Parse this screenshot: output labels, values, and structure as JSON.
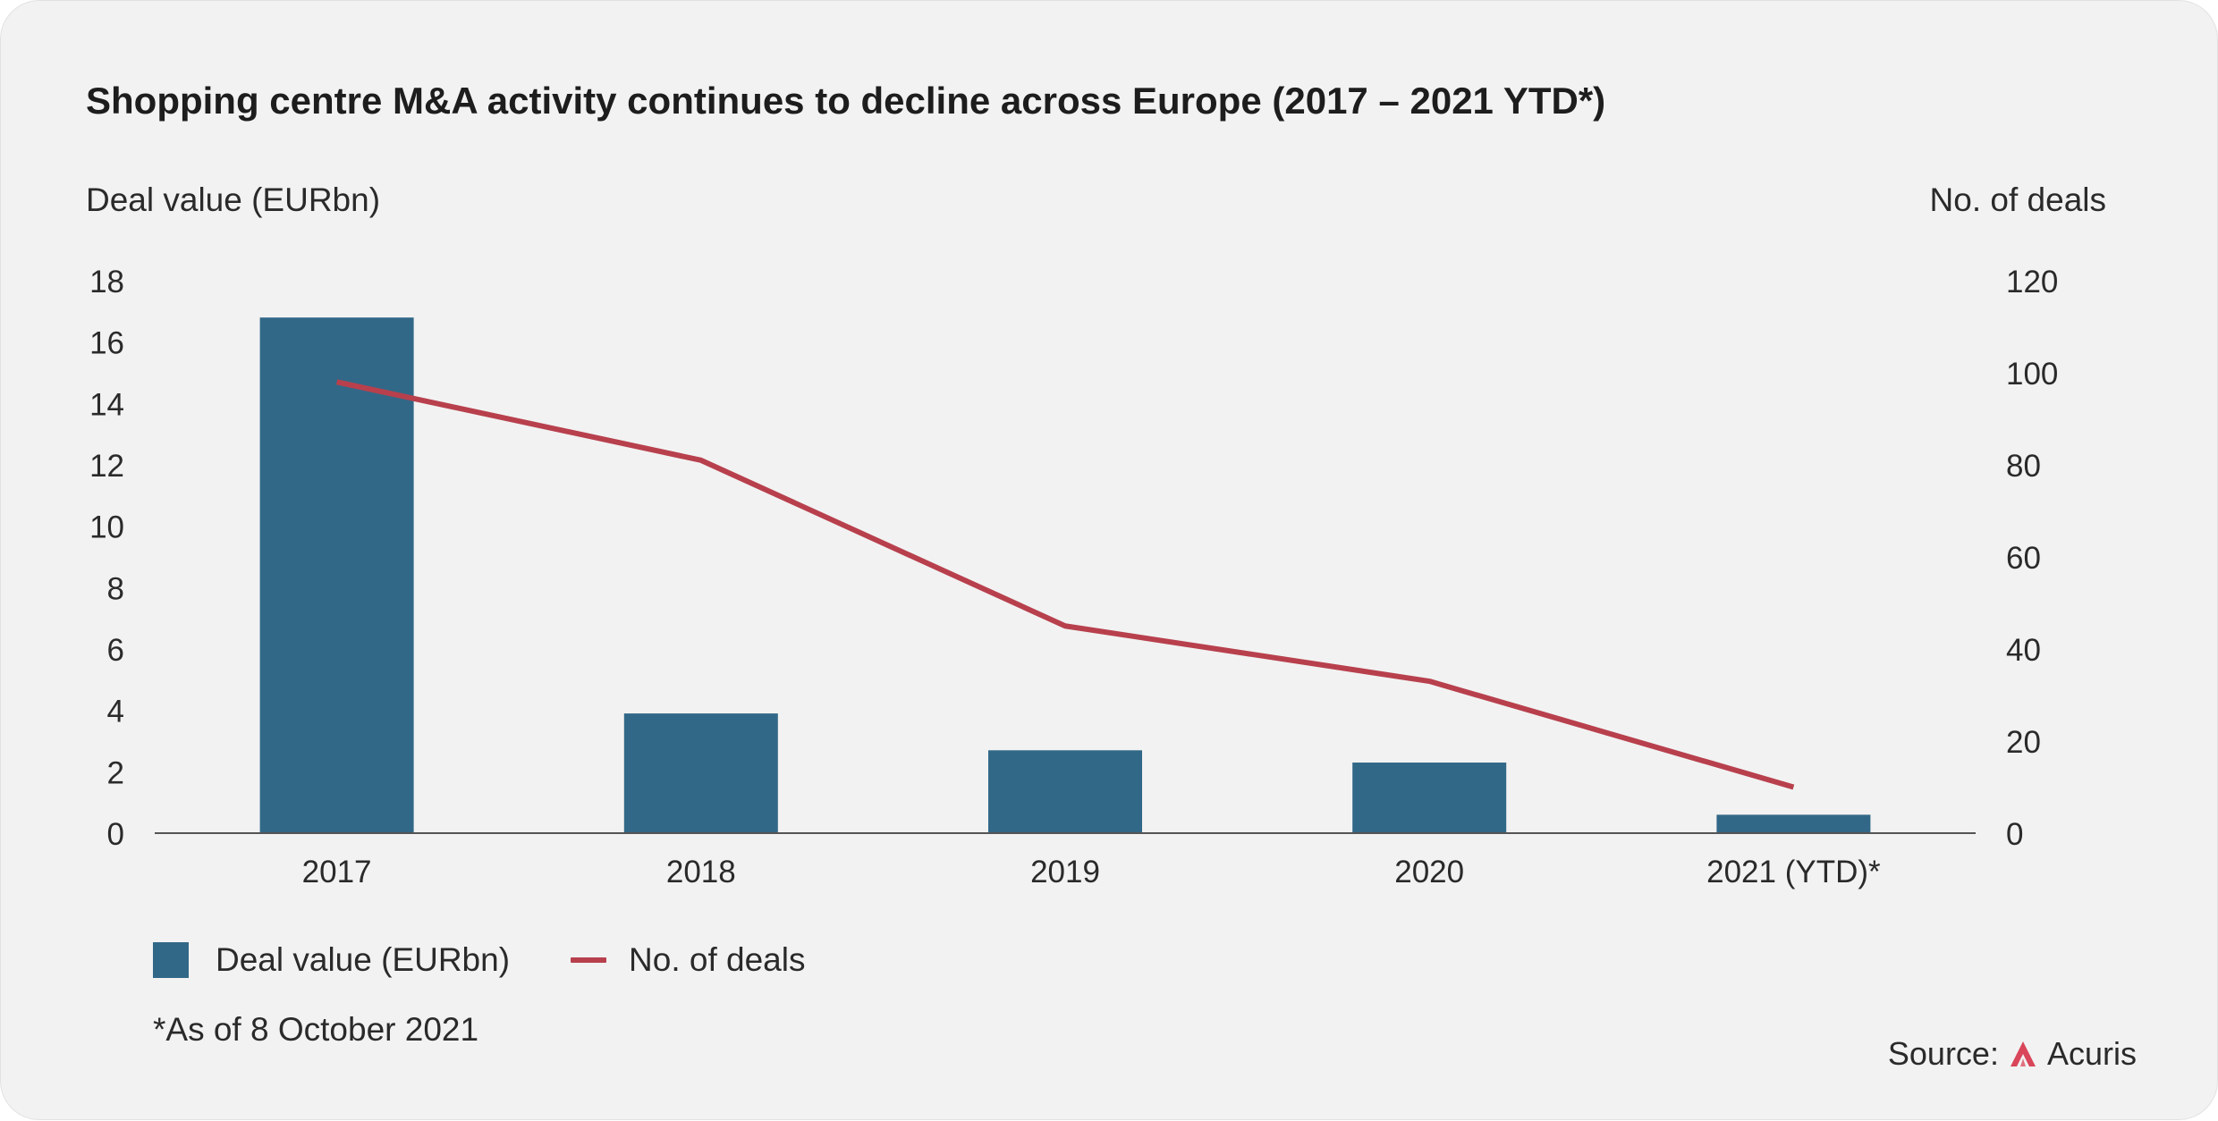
{
  "title": "Shopping centre M&A activity continues to decline across Europe (2017 – 2021 YTD*)",
  "colors": {
    "bar": "#326887",
    "line": "#b8404d",
    "background": "#f2f2f2",
    "text": "#2a2a2a",
    "logo": "#d9465a"
  },
  "chart_data": {
    "type": "bar",
    "title": "Shopping centre M&A activity continues to decline across Europe (2017 – 2021 YTD*)",
    "categories": [
      "2017",
      "2018",
      "2019",
      "2020",
      "2021 (YTD)*"
    ],
    "series": [
      {
        "name": "Deal value (EURbn)",
        "type": "bar",
        "axis": "left",
        "values": [
          16.8,
          3.9,
          2.7,
          2.3,
          0.6
        ]
      },
      {
        "name": "No. of deals",
        "type": "line",
        "axis": "right",
        "values": [
          98,
          81,
          45,
          33,
          10
        ]
      }
    ],
    "ylabel": "Deal value (EURbn)",
    "ylabel_right": "No. of deals",
    "ylim": [
      0,
      18
    ],
    "ylim_right": [
      0,
      120
    ],
    "yticks": [
      "0",
      "2",
      "4",
      "6",
      "8",
      "10",
      "12",
      "14",
      "16",
      "18"
    ],
    "yticks_right": [
      "0",
      "20",
      "40",
      "60",
      "80",
      "100",
      "120"
    ],
    "grid": false,
    "legend": "bottom-left"
  },
  "footnote": "*As of 8 October 2021",
  "source": {
    "label": "Source:",
    "brand": "Acuris",
    "icon": "acuris-logo-icon"
  }
}
